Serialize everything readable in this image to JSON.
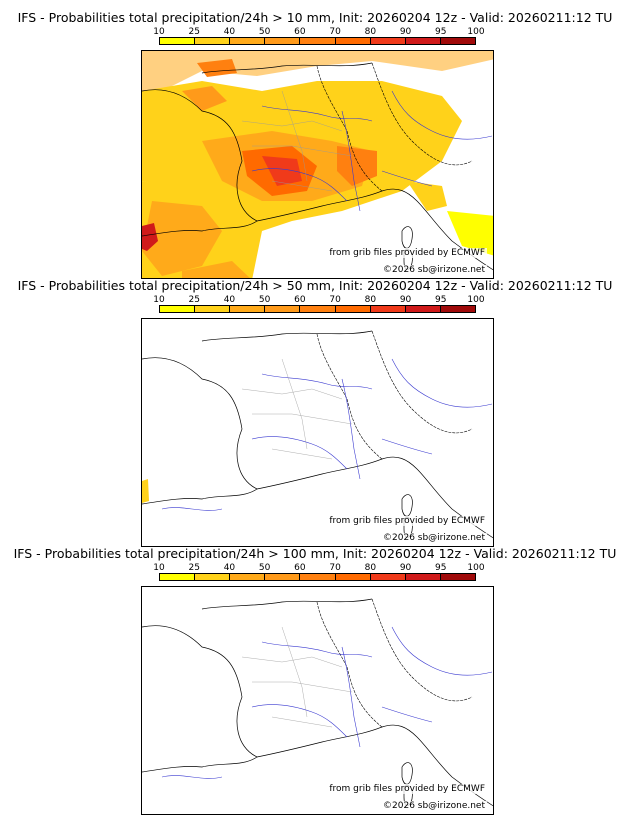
{
  "colorbar": {
    "ticks": [
      "10",
      "25",
      "40",
      "50",
      "60",
      "70",
      "80",
      "90",
      "95",
      "100"
    ],
    "colors": [
      "#ffff00",
      "#ffd21a",
      "#ffaa1a",
      "#ff9a1a",
      "#ff8010",
      "#ff6a00",
      "#f03a1a",
      "#d01a1a",
      "#a00a0a",
      "#600000"
    ]
  },
  "panels": [
    {
      "title": "IFS - Probabilities total precipitation/24h > 10 mm, Init: 20260204 12z - Valid: 20260211:12 TU",
      "credit_source": "from grib files provided by ECMWF",
      "credit_copyright": "©2026 sb@irizone.net",
      "coverage": "high"
    },
    {
      "title": "IFS - Probabilities total precipitation/24h > 50 mm, Init: 20260204 12z - Valid: 20260211:12 TU",
      "credit_source": "from grib files provided by ECMWF",
      "credit_copyright": "©2026 sb@irizone.net",
      "coverage": "trace"
    },
    {
      "title": "IFS - Probabilities total precipitation/24h > 100 mm, Init: 20260204 12z - Valid: 20260211:12 TU",
      "credit_source": "from grib files provided by ECMWF",
      "credit_copyright": "©2026 sb@irizone.net",
      "coverage": "none"
    }
  ]
}
